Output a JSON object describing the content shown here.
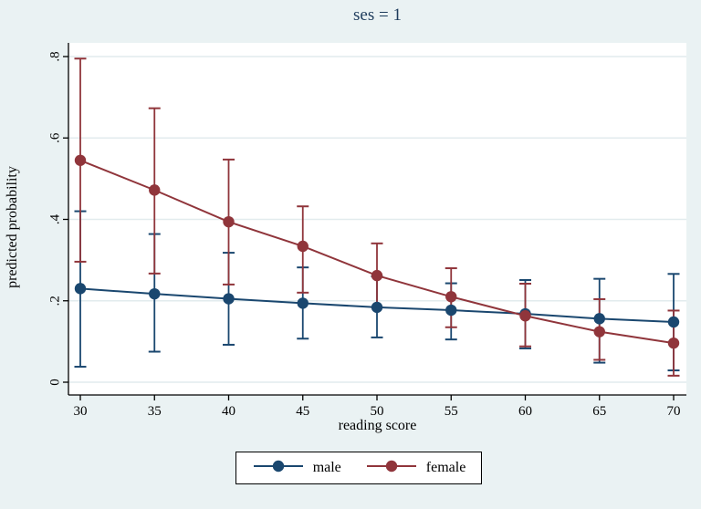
{
  "title": "ses = 1",
  "colors": {
    "background": "#eaf2f3",
    "plot_background": "#ffffff",
    "gridline": "#e2ebee",
    "axis": "#000000",
    "title_text": "#1e3c5c",
    "male": "#1a476f",
    "female": "#90353b"
  },
  "chart_data": {
    "type": "line",
    "title": "ses = 1",
    "xlabel": "reading score",
    "ylabel": "predicted probability",
    "x": [
      30,
      35,
      40,
      45,
      50,
      55,
      60,
      65,
      70
    ],
    "x_tick_labels": [
      "30",
      "35",
      "40",
      "45",
      "50",
      "55",
      "60",
      "65",
      "70"
    ],
    "y_ticks": [
      0,
      0.2,
      0.4,
      0.6,
      0.8
    ],
    "y_tick_labels": [
      "0",
      ".2",
      ".4",
      ".6",
      ".8"
    ],
    "xlim": [
      30,
      70
    ],
    "ylim": [
      0,
      0.8
    ],
    "grid": true,
    "legend_position": "bottom",
    "error_bars": "95% CI",
    "series": [
      {
        "name": "male",
        "color": "#1a476f",
        "values": [
          0.23,
          0.217,
          0.205,
          0.194,
          0.184,
          0.177,
          0.168,
          0.156,
          0.148
        ],
        "ci_low": [
          0.038,
          0.075,
          0.092,
          0.107,
          0.11,
          0.105,
          0.083,
          0.048,
          0.029
        ],
        "ci_high": [
          0.42,
          0.364,
          0.318,
          0.282,
          0.26,
          0.243,
          0.251,
          0.254,
          0.266
        ]
      },
      {
        "name": "female",
        "color": "#90353b",
        "values": [
          0.545,
          0.472,
          0.394,
          0.334,
          0.262,
          0.21,
          0.163,
          0.124,
          0.096
        ],
        "ci_low": [
          0.296,
          0.267,
          0.24,
          0.22,
          0.184,
          0.135,
          0.088,
          0.055,
          0.016
        ],
        "ci_high": [
          0.795,
          0.673,
          0.547,
          0.432,
          0.341,
          0.28,
          0.242,
          0.204,
          0.176
        ]
      }
    ]
  }
}
